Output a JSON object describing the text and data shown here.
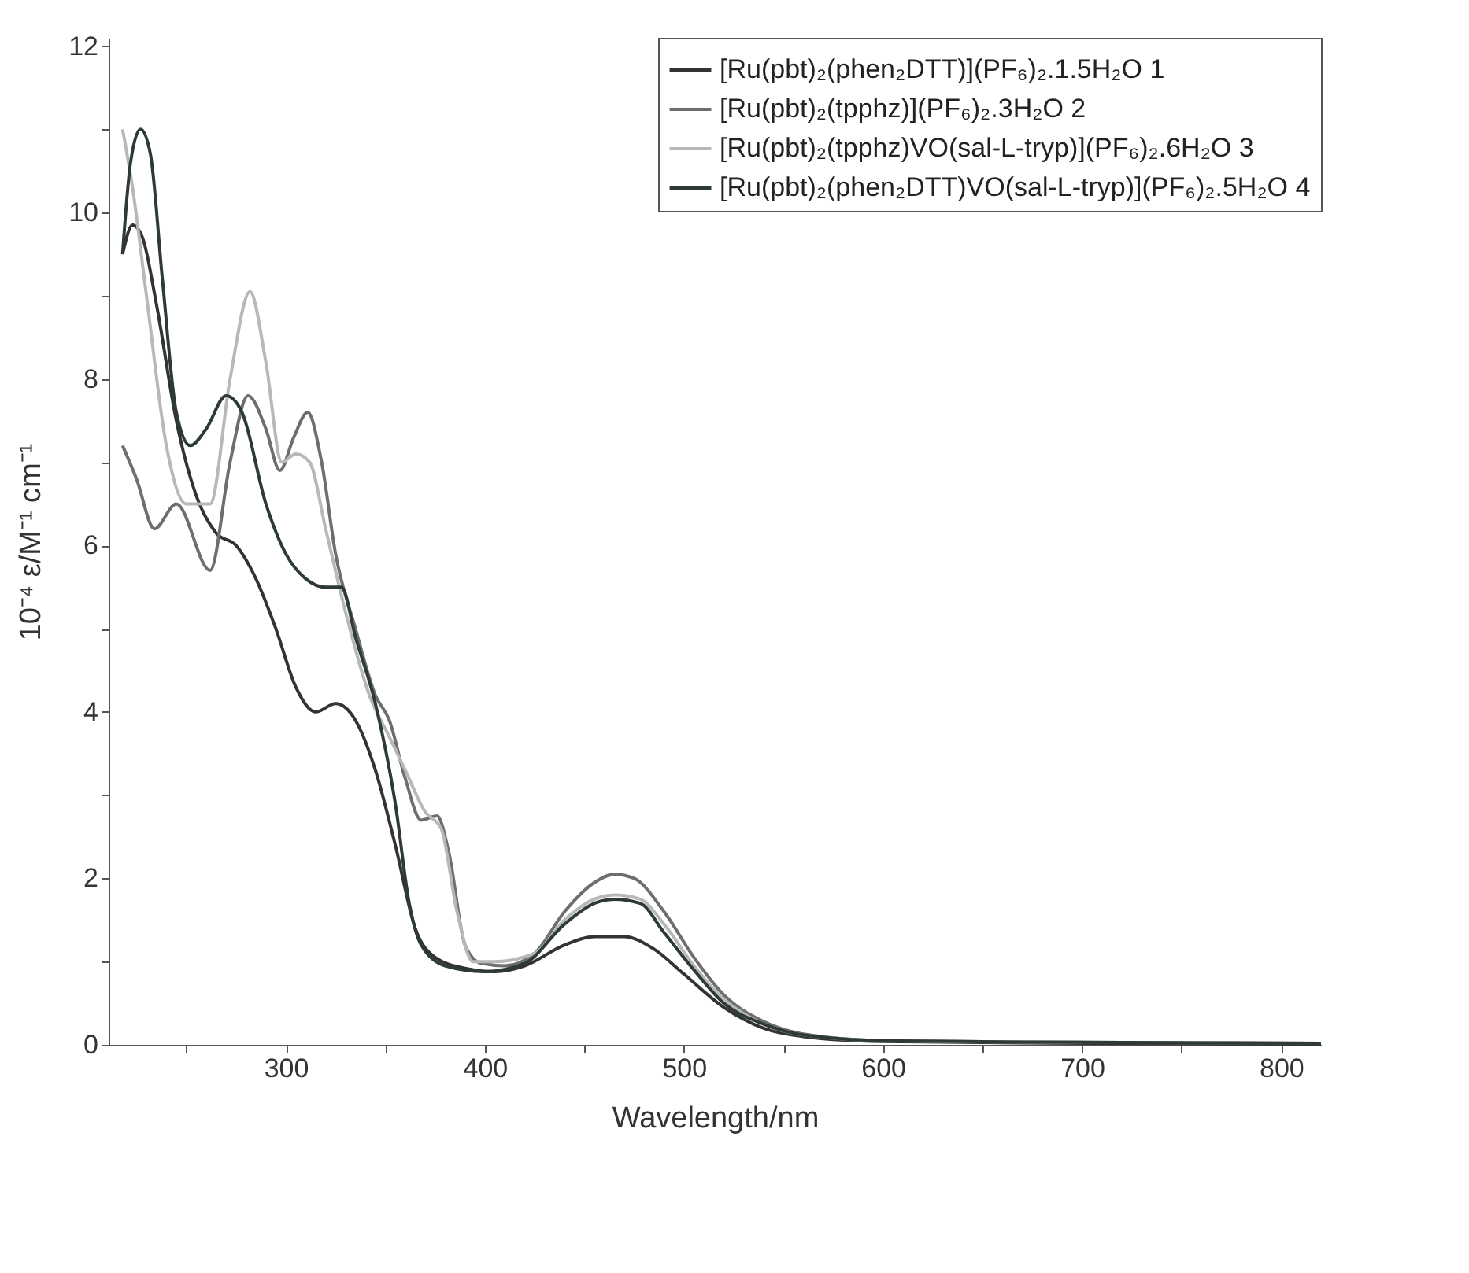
{
  "chart_data": {
    "type": "line",
    "xlabel": "Wavelength/nm",
    "ylabel": "10⁻⁴ ε/M⁻¹ cm⁻¹",
    "xlim": [
      211,
      820
    ],
    "ylim": [
      0,
      12.1
    ],
    "xticks": [
      {
        "value": 250,
        "label": null
      },
      300,
      {
        "value": 350,
        "label": null
      },
      400,
      {
        "value": 450,
        "label": null
      },
      500,
      {
        "value": 550,
        "label": null
      },
      600,
      {
        "value": 650,
        "label": null
      },
      700,
      {
        "value": 750,
        "label": null
      },
      800
    ],
    "yticks": [
      0,
      {
        "value": 1,
        "label": null
      },
      2,
      {
        "value": 3,
        "label": null
      },
      4,
      {
        "value": 5,
        "label": null
      },
      6,
      {
        "value": 7,
        "label": null
      },
      8,
      {
        "value": 9,
        "label": null
      },
      10,
      {
        "value": 11,
        "label": null
      },
      12
    ],
    "grid": false,
    "legend": "top right",
    "line_style": "solid",
    "marker": "none",
    "series": [
      {
        "name": "[Ru(pbt)₂(phen₂DTT)](PF₆)₂.1.5H₂O 1",
        "color": "#333333",
        "x": [
          218,
          223,
          228,
          235,
          245,
          255,
          265,
          275,
          285,
          295,
          305,
          315,
          325,
          335,
          345,
          355,
          365,
          375,
          390,
          405,
          420,
          440,
          455,
          470,
          485,
          500,
          520,
          540,
          560,
          600,
          700,
          820
        ],
        "values": [
          9.5,
          9.85,
          9.7,
          8.9,
          7.5,
          6.6,
          6.15,
          6.0,
          5.6,
          5.0,
          4.3,
          4.0,
          4.1,
          3.9,
          3.3,
          2.4,
          1.4,
          1.05,
          0.92,
          0.88,
          0.95,
          1.2,
          1.3,
          1.3,
          1.15,
          0.85,
          0.45,
          0.2,
          0.1,
          0.04,
          0.02,
          0.01
        ]
      },
      {
        "name": "[Ru(pbt)₂(tpphz)](PF₆)₂.3H₂O 2",
        "color": "#6e6e6e",
        "x": [
          218,
          225,
          234,
          245,
          262,
          272,
          281,
          290,
          297,
          304,
          311,
          318,
          325,
          335,
          345,
          352,
          360,
          368,
          376,
          382,
          390,
          398,
          410,
          425,
          440,
          455,
          465,
          475,
          490,
          505,
          520,
          540,
          560,
          600,
          700,
          820
        ],
        "values": [
          7.2,
          6.8,
          6.2,
          6.5,
          5.7,
          7.0,
          7.8,
          7.4,
          6.9,
          7.3,
          7.6,
          7.0,
          5.9,
          5.0,
          4.2,
          3.9,
          3.2,
          2.7,
          2.75,
          2.3,
          1.2,
          0.98,
          0.95,
          1.1,
          1.6,
          1.95,
          2.05,
          2.0,
          1.6,
          1.05,
          0.6,
          0.28,
          0.13,
          0.05,
          0.03,
          0.02
        ]
      },
      {
        "name": "[Ru(pbt)₂(tpphz)VO(sal-L-tryp)](PF₆)₂.6H₂O 3",
        "color": "#b8b8b8",
        "x": [
          218,
          223,
          230,
          240,
          250,
          262,
          272,
          282,
          290,
          298,
          305,
          312,
          320,
          330,
          342,
          352,
          360,
          370,
          378,
          386,
          394,
          405,
          425,
          440,
          455,
          465,
          478,
          490,
          505,
          520,
          540,
          560,
          600,
          700
        ],
        "values": [
          11.0,
          10.3,
          9.0,
          7.2,
          6.5,
          6.5,
          8.0,
          9.05,
          8.2,
          7.0,
          7.1,
          7.0,
          6.2,
          5.2,
          4.2,
          3.7,
          3.3,
          2.8,
          2.6,
          1.6,
          1.0,
          1.0,
          1.1,
          1.5,
          1.75,
          1.8,
          1.75,
          1.45,
          0.95,
          0.55,
          0.25,
          0.12,
          0.05,
          0.03
        ]
      },
      {
        "name": "[Ru(pbt)₂(phen₂DTT)VO(sal-L-tryp)](PF₆)₂.5H₂O 4",
        "color": "#2e3b32",
        "x": [
          218,
          222,
          227,
          232,
          238,
          245,
          252,
          260,
          270,
          278,
          290,
          300,
          310,
          320,
          328,
          335,
          345,
          355,
          362,
          368,
          380,
          400,
          420,
          440,
          455,
          465,
          478,
          490,
          505,
          520,
          540,
          560,
          600,
          700,
          820
        ],
        "values": [
          9.5,
          10.6,
          11.0,
          10.7,
          9.2,
          7.6,
          7.2,
          7.4,
          7.8,
          7.6,
          6.5,
          5.9,
          5.6,
          5.5,
          5.5,
          4.9,
          4.1,
          2.9,
          1.7,
          1.2,
          0.95,
          0.88,
          0.98,
          1.45,
          1.7,
          1.75,
          1.7,
          1.35,
          0.9,
          0.5,
          0.25,
          0.12,
          0.05,
          0.03,
          0.02
        ]
      }
    ]
  }
}
